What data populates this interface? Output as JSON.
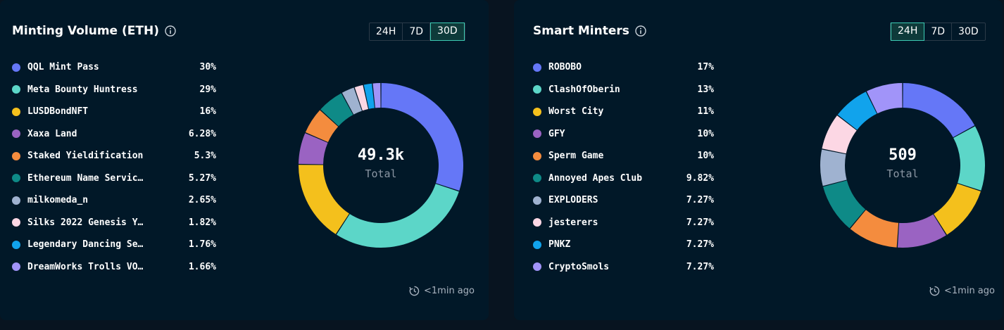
{
  "panels": [
    {
      "title": "Minting Volume (ETH)",
      "timeframes": [
        "24H",
        "7D",
        "30D"
      ],
      "active_timeframe": "30D",
      "updated": "<1min ago",
      "center_value": "49.3k",
      "center_label": "Total",
      "chart_data": {
        "type": "pie",
        "title": "Minting Volume (ETH)",
        "total": "49.3k",
        "categories": [
          "QQL Mint Pass",
          "Meta Bounty Huntress",
          "LUSDBondNFT",
          "Xaxa Land",
          "Staked Yieldification",
          "Ethereum Name Servic…",
          "milkomeda_n",
          "Silks 2022 Genesis Y…",
          "Legendary Dancing Se…",
          "DreamWorks Trolls VO…"
        ],
        "labels": [
          "30%",
          "29%",
          "16%",
          "6.28%",
          "5.3%",
          "5.27%",
          "2.65%",
          "1.82%",
          "1.76%",
          "1.66%"
        ],
        "values": [
          30,
          29,
          16,
          6.28,
          5.3,
          5.27,
          2.65,
          1.82,
          1.76,
          1.66
        ],
        "colors": [
          "#6577f7",
          "#5cd6c8",
          "#f4c01c",
          "#9a63c2",
          "#f48c3e",
          "#0e8a87",
          "#9fb2d0",
          "#fcd7e4",
          "#11a3ec",
          "#a194f9"
        ],
        "legend": "left"
      }
    },
    {
      "title": "Smart Minters",
      "timeframes": [
        "24H",
        "7D",
        "30D"
      ],
      "active_timeframe": "24H",
      "updated": "<1min ago",
      "center_value": "509",
      "center_label": "Total",
      "chart_data": {
        "type": "pie",
        "title": "Smart Minters",
        "total": "509",
        "categories": [
          "ROBOBO",
          "ClashOfOberin",
          "Worst City",
          "GFY",
          "Sperm Game",
          "Annoyed Apes Club",
          "EXPLODERS",
          "jesterers",
          "PNKZ",
          "CryptoSmols"
        ],
        "labels": [
          "17%",
          "13%",
          "11%",
          "10%",
          "10%",
          "9.82%",
          "7.27%",
          "7.27%",
          "7.27%",
          "7.27%"
        ],
        "values": [
          17,
          13,
          11,
          10,
          10,
          9.82,
          7.27,
          7.27,
          7.27,
          7.27
        ],
        "colors": [
          "#6577f7",
          "#5cd6c8",
          "#f4c01c",
          "#9a63c2",
          "#f48c3e",
          "#0e8a87",
          "#9fb2d0",
          "#fcd7e4",
          "#11a3ec",
          "#a194f9"
        ],
        "legend": "left"
      }
    }
  ]
}
